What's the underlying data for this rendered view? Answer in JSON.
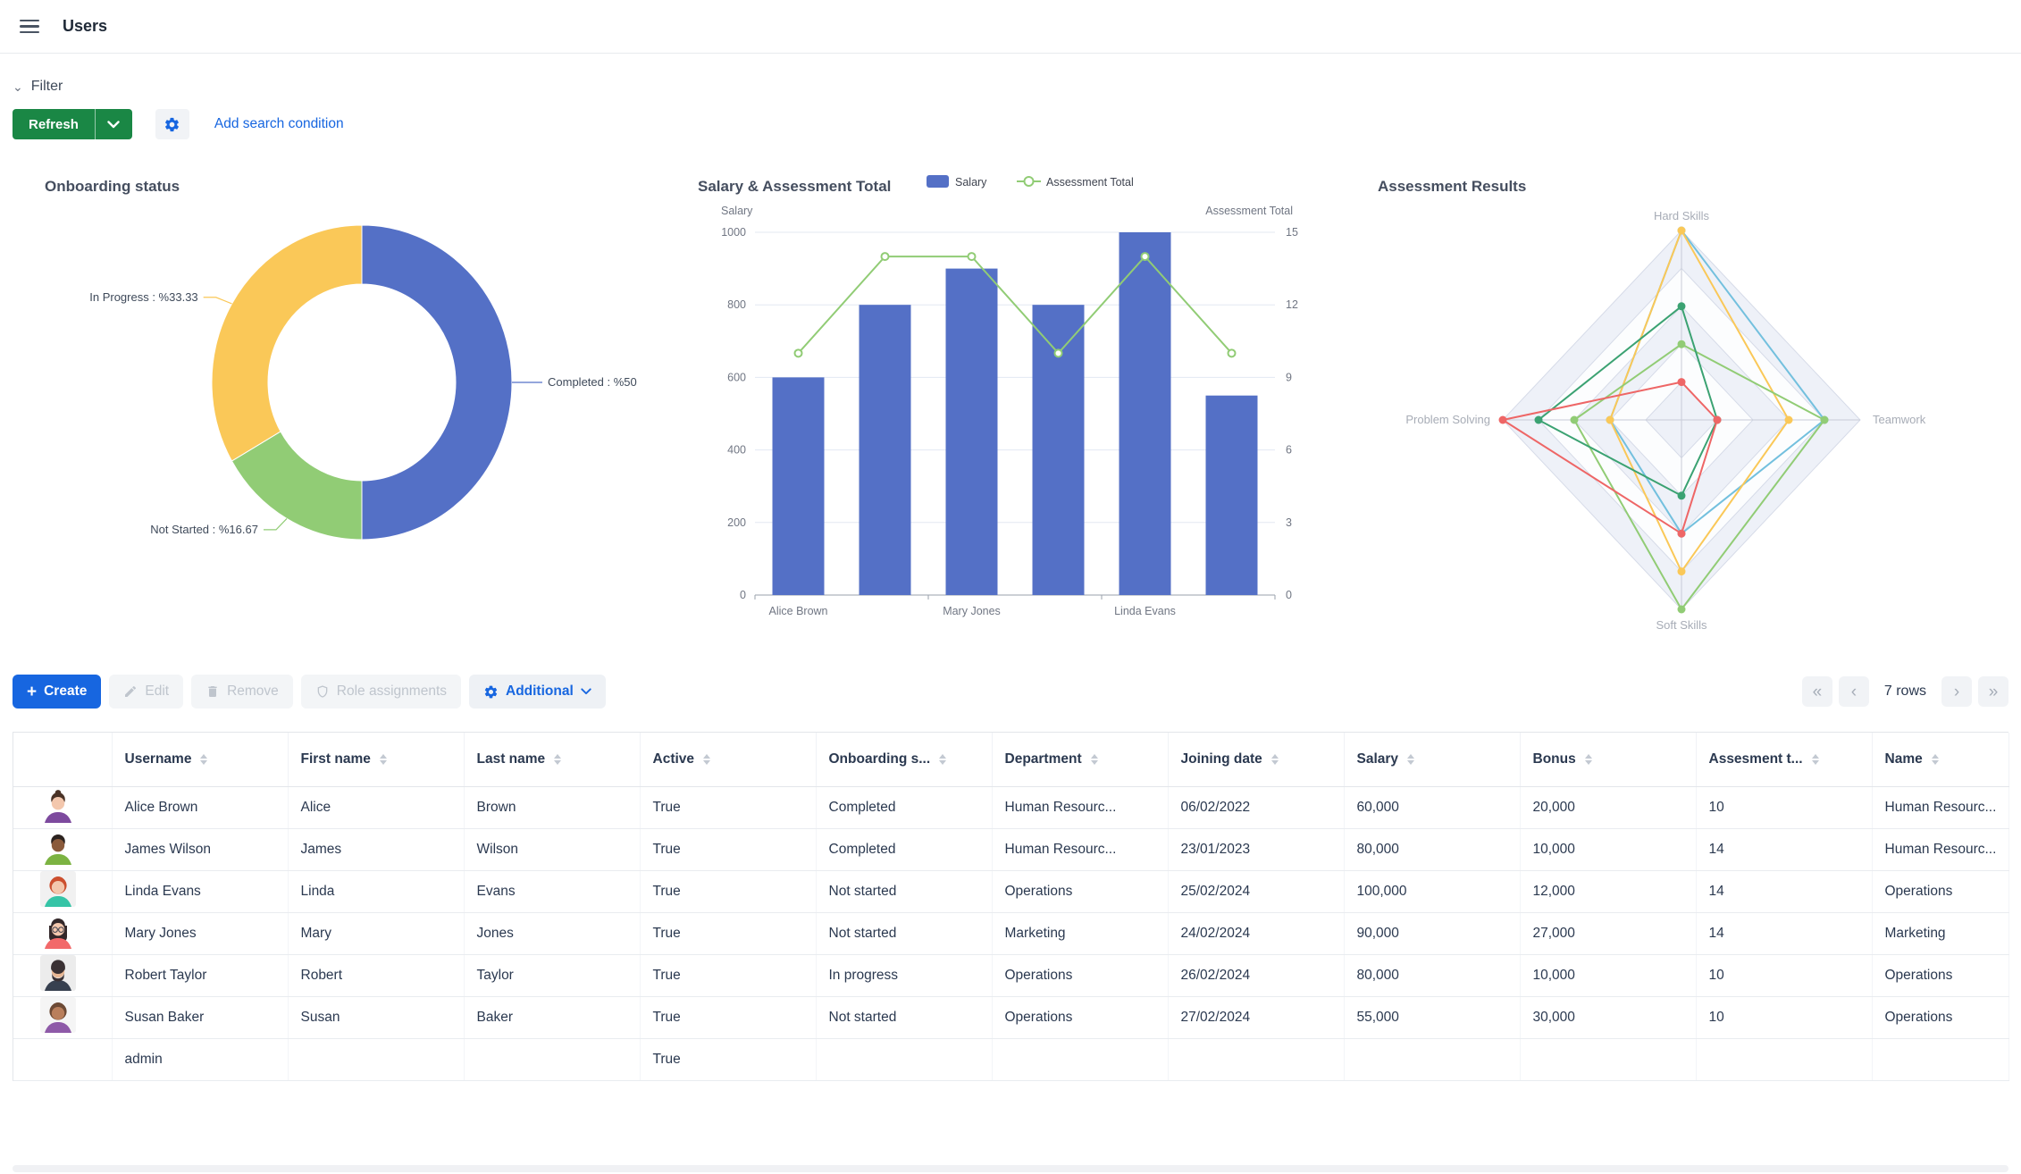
{
  "header": {
    "title": "Users"
  },
  "filter": {
    "label": "Filter",
    "refresh": "Refresh",
    "add_condition": "Add search condition"
  },
  "toolbar": {
    "create": "Create",
    "edit": "Edit",
    "remove": "Remove",
    "role_assignments": "Role assignments",
    "additional": "Additional"
  },
  "pagination": {
    "rows_label": "7 rows"
  },
  "colors": {
    "accent_blue": "#1766e0",
    "green_button": "#1a8745",
    "series_blue": "#5470c6",
    "series_green": "#91cc75",
    "series_yellow": "#fac858",
    "series_red": "#ee6666",
    "series_lightblue": "#73c0de",
    "series_darkgreen": "#3ba272"
  },
  "chart_data": [
    {
      "type": "pie",
      "title": "Onboarding status",
      "donut": true,
      "slices": [
        {
          "name": "Completed",
          "value": 50,
          "label": "Completed : %50",
          "color": "#5470c6"
        },
        {
          "name": "Not Started",
          "value": 16.67,
          "label": "Not Started : %16.67",
          "color": "#91cc75"
        },
        {
          "name": "In Progress",
          "value": 33.33,
          "label": "In Progress : %33.33",
          "color": "#fac858"
        }
      ]
    },
    {
      "type": "bar",
      "title": "Salary & Assessment Total",
      "legend": [
        "Salary",
        "Assessment Total"
      ],
      "left_axis": {
        "name": "Salary",
        "min": 0,
        "max": 1000,
        "step": 200,
        "ticks": [
          "0",
          "200",
          "400",
          "600",
          "800",
          "1000"
        ]
      },
      "right_axis": {
        "name": "Assessment Total",
        "min": 0,
        "max": 15,
        "step": 3,
        "ticks": [
          "0",
          "3",
          "6",
          "9",
          "12",
          "15"
        ]
      },
      "bar_values": [
        600,
        800,
        900,
        800,
        1000,
        550
      ],
      "line_values": [
        10,
        14,
        14,
        10,
        14,
        10
      ],
      "x_labels": [
        {
          "index": 0,
          "label": "Alice Brown"
        },
        {
          "index": 2,
          "label": "Mary Jones"
        },
        {
          "index": 4,
          "label": "Linda Evans"
        }
      ]
    },
    {
      "type": "radar",
      "title": "Assessment Results",
      "indicators": [
        "Hard Skills",
        "Teamwork",
        "Soft Skills",
        "Problem Solving"
      ],
      "max": 5,
      "series": [
        {
          "color": "#73c0de",
          "values": [
            5,
            4,
            3,
            2
          ]
        },
        {
          "color": "#fac858",
          "values": [
            5,
            3,
            4,
            2
          ]
        },
        {
          "color": "#91cc75",
          "values": [
            2,
            4,
            5,
            3
          ]
        },
        {
          "color": "#3ba272",
          "values": [
            3,
            1,
            2,
            4
          ]
        },
        {
          "color": "#ee6666",
          "values": [
            1,
            1,
            3,
            5
          ]
        }
      ]
    }
  ],
  "table": {
    "columns": [
      {
        "label": "",
        "sortable": false
      },
      {
        "label": "Username",
        "sortable": true
      },
      {
        "label": "First name",
        "sortable": true
      },
      {
        "label": "Last name",
        "sortable": true
      },
      {
        "label": "Active",
        "sortable": true
      },
      {
        "label": "Onboarding s...",
        "sortable": true
      },
      {
        "label": "Department",
        "sortable": true
      },
      {
        "label": "Joining date",
        "sortable": true
      },
      {
        "label": "Salary",
        "sortable": true
      },
      {
        "label": "Bonus",
        "sortable": true
      },
      {
        "label": "Assesment t...",
        "sortable": true
      },
      {
        "label": "Name",
        "sortable": true
      }
    ],
    "rows": [
      {
        "username": "Alice Brown",
        "first_name": "Alice",
        "last_name": "Brown",
        "active": "True",
        "onboarding": "Completed",
        "department": "Human Resourc...",
        "joining_date": "06/02/2022",
        "salary": "60,000",
        "bonus": "20,000",
        "assessment": "10",
        "name": "Human Resourc...",
        "avatar": {
          "bg": "#ffffff",
          "skin": "#f3c7ad",
          "hair": "#4a3326",
          "shirt": "#7d4a9e",
          "style": "bun"
        }
      },
      {
        "username": "James Wilson",
        "first_name": "James",
        "last_name": "Wilson",
        "active": "True",
        "onboarding": "Completed",
        "department": "Human Resourc...",
        "joining_date": "23/01/2023",
        "salary": "80,000",
        "bonus": "10,000",
        "assessment": "14",
        "name": "Human Resourc...",
        "avatar": {
          "bg": "#ffffff",
          "skin": "#8a5a3b",
          "hair": "#2c2320",
          "shirt": "#7cb342",
          "style": "short"
        }
      },
      {
        "username": "Linda Evans",
        "first_name": "Linda",
        "last_name": "Evans",
        "active": "True",
        "onboarding": "Not started",
        "department": "Operations",
        "joining_date": "25/02/2024",
        "salary": "100,000",
        "bonus": "12,000",
        "assessment": "14",
        "name": "Operations",
        "avatar": {
          "bg": "#f1f1f1",
          "skin": "#f3c7ad",
          "hair": "#cc4f2e",
          "shirt": "#35c4a6",
          "style": "curly"
        }
      },
      {
        "username": "Mary Jones",
        "first_name": "Mary",
        "last_name": "Jones",
        "active": "True",
        "onboarding": "Not started",
        "department": "Marketing",
        "joining_date": "24/02/2024",
        "salary": "90,000",
        "bonus": "27,000",
        "assessment": "14",
        "name": "Marketing",
        "avatar": {
          "bg": "#ffffff",
          "skin": "#f3c7ad",
          "hair": "#33282a",
          "shirt": "#f2696a",
          "style": "long",
          "glasses": true
        }
      },
      {
        "username": "Robert Taylor",
        "first_name": "Robert",
        "last_name": "Taylor",
        "active": "True",
        "onboarding": "In progress",
        "department": "Operations",
        "joining_date": "26/02/2024",
        "salary": "80,000",
        "bonus": "10,000",
        "assessment": "10",
        "name": "Operations",
        "avatar": {
          "bg": "#ececec",
          "skin": "#e8b794",
          "hair": "#3a3134",
          "shirt": "#37404f",
          "style": "beard"
        }
      },
      {
        "username": "Susan Baker",
        "first_name": "Susan",
        "last_name": "Baker",
        "active": "True",
        "onboarding": "Not started",
        "department": "Operations",
        "joining_date": "27/02/2024",
        "salary": "55,000",
        "bonus": "30,000",
        "assessment": "10",
        "name": "Operations",
        "avatar": {
          "bg": "#f5f5f5",
          "skin": "#b97f5c",
          "hair": "#6d4a35",
          "shirt": "#8e5aa8",
          "style": "curly"
        }
      },
      {
        "username": "admin",
        "first_name": "",
        "last_name": "",
        "active": "True",
        "onboarding": "",
        "department": "",
        "joining_date": "",
        "salary": "",
        "bonus": "",
        "assessment": "",
        "name": "",
        "avatar": null
      }
    ]
  }
}
